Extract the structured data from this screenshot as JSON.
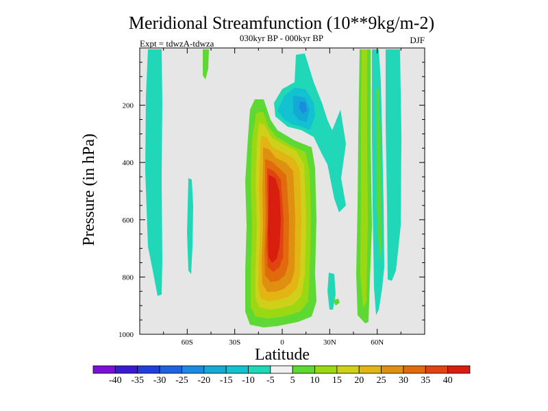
{
  "chart_data": {
    "type": "contour",
    "title": "Meridional Streamfunction (10**9kg/m-2)",
    "subtitle": "030kyr BP - 000kyr BP",
    "left_label": "Expt = tdwzA-tdwza",
    "right_label": "DJF",
    "xlabel": "Latitude",
    "ylabel": "Pressure (in hPa)",
    "xlim": [
      -90,
      90
    ],
    "ylim": [
      1000,
      0
    ],
    "x_ticks": [
      {
        "value": -60,
        "label": "60S"
      },
      {
        "value": -30,
        "label": "30S"
      },
      {
        "value": 0,
        "label": "0"
      },
      {
        "value": 30,
        "label": "30N"
      },
      {
        "value": 60,
        "label": "60N"
      }
    ],
    "y_ticks": [
      {
        "value": 200,
        "label": "200"
      },
      {
        "value": 400,
        "label": "400"
      },
      {
        "value": 600,
        "label": "600"
      },
      {
        "value": 800,
        "label": "800"
      },
      {
        "value": 1000,
        "label": "1000"
      }
    ],
    "contour_levels": [
      -40,
      -35,
      -30,
      -25,
      -20,
      -15,
      -10,
      -5,
      5,
      10,
      15,
      20,
      25,
      30,
      35,
      40
    ],
    "colorbar": {
      "labels": [
        "-40",
        "-35",
        "-30",
        "-25",
        "-20",
        "-15",
        "-10",
        "-5",
        "5",
        "10",
        "15",
        "20",
        "25",
        "30",
        "35",
        "40"
      ],
      "colors": [
        "#7a10d8",
        "#3a1ad0",
        "#1e3fdc",
        "#1f62e0",
        "#1c8ae0",
        "#15a9d6",
        "#12c2d0",
        "#20d8b8",
        "#f0f0f0",
        "#5ed832",
        "#9bd814",
        "#cfd01a",
        "#e2b414",
        "#e09010",
        "#e06a0c",
        "#e04410",
        "#d81e0e"
      ]
    },
    "background_color": "#e6e6e6",
    "features": [
      {
        "name": "main-cell",
        "level_max": 40,
        "lat_center": -2,
        "pressure_center": 650
      },
      {
        "name": "upper-negative",
        "level_min": -25,
        "lat_center": 8,
        "pressure_center": 220
      },
      {
        "name": "south-polar-negative",
        "level_min": -10,
        "lat_center": -78,
        "pressure_center": 400
      },
      {
        "name": "north-mid-positive",
        "level_max": 15,
        "lat_center": 55,
        "pressure_center": 500
      },
      {
        "name": "north-polar-negative",
        "level_min": -10,
        "lat_center": 68,
        "pressure_center": 400
      }
    ]
  }
}
